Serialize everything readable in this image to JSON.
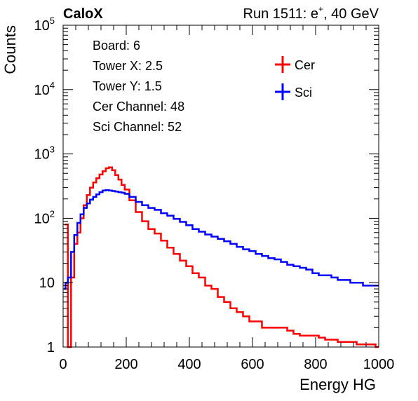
{
  "header": {
    "left_title": "CaloX",
    "right_title_prefix": "Run 1511: e",
    "right_title_sup": "+",
    "right_title_suffix": ", 40 GeV"
  },
  "info_box": {
    "lines": [
      "Board: 6",
      "Tower X: 2.5",
      "Tower Y: 1.5",
      "Cer Channel: 48",
      "Sci Channel: 52"
    ]
  },
  "colors": {
    "cer": "#ff0000",
    "sci": "#0000ff",
    "axis": "#000000"
  },
  "chart_data": {
    "type": "line",
    "title": "",
    "xlabel": "Energy HG",
    "ylabel": "Counts",
    "xlim": [
      0,
      1000
    ],
    "ylim": [
      1,
      100000
    ],
    "log_y": true,
    "grid": false,
    "legend_position": "top-right",
    "x_ticks": [
      {
        "value": 0,
        "label": "0"
      },
      {
        "value": 200,
        "label": "200"
      },
      {
        "value": 400,
        "label": "400"
      },
      {
        "value": 600,
        "label": "600"
      },
      {
        "value": 800,
        "label": "800"
      },
      {
        "value": 1000,
        "label": "1000"
      }
    ],
    "y_ticks": [
      {
        "value": 1,
        "base": "1",
        "exp": ""
      },
      {
        "value": 10,
        "base": "10",
        "exp": ""
      },
      {
        "value": 100,
        "base": "10",
        "exp": "2"
      },
      {
        "value": 1000,
        "base": "10",
        "exp": "3"
      },
      {
        "value": 10000,
        "base": "10",
        "exp": "4"
      },
      {
        "value": 100000,
        "base": "10",
        "exp": "5"
      }
    ],
    "series": [
      {
        "name": "Cer",
        "color": "#ff0000",
        "x": [
          10,
          20,
          30,
          40,
          50,
          60,
          70,
          80,
          90,
          100,
          110,
          120,
          130,
          140,
          150,
          160,
          170,
          180,
          190,
          200,
          220,
          240,
          260,
          280,
          300,
          320,
          340,
          360,
          380,
          400,
          420,
          440,
          460,
          480,
          500,
          520,
          540,
          560,
          580,
          600,
          620,
          640,
          660,
          680,
          700,
          720,
          740,
          760,
          780,
          800,
          820,
          840,
          860,
          880,
          900,
          920,
          940,
          960,
          980,
          1000
        ],
        "y": [
          80,
          1,
          12,
          40,
          60,
          100,
          160,
          230,
          300,
          360,
          420,
          480,
          540,
          600,
          620,
          560,
          470,
          400,
          330,
          280,
          190,
          125,
          90,
          68,
          58,
          45,
          35,
          28,
          22,
          18,
          14,
          12,
          9,
          8,
          6,
          5,
          4,
          3.5,
          3,
          2.5,
          2.5,
          2,
          2,
          2,
          2,
          1.8,
          1.6,
          1.5,
          1.5,
          1.5,
          1.4,
          1.3,
          1.3,
          1.2,
          1.2,
          1.2,
          1.1,
          1.1,
          1.1,
          1
        ]
      },
      {
        "name": "Sci",
        "color": "#0000ff",
        "x": [
          5,
          10,
          20,
          30,
          40,
          50,
          60,
          70,
          80,
          90,
          100,
          110,
          120,
          130,
          140,
          150,
          160,
          170,
          180,
          190,
          200,
          220,
          240,
          260,
          280,
          300,
          320,
          340,
          360,
          380,
          400,
          420,
          440,
          460,
          480,
          500,
          520,
          540,
          560,
          580,
          600,
          620,
          640,
          660,
          680,
          700,
          720,
          740,
          760,
          780,
          800,
          820,
          840,
          860,
          880,
          900,
          920,
          940,
          960,
          980,
          1000
        ],
        "y": [
          8,
          10,
          12,
          30,
          55,
          85,
          115,
          145,
          170,
          195,
          215,
          235,
          255,
          270,
          275,
          270,
          265,
          260,
          255,
          250,
          240,
          215,
          180,
          160,
          145,
          135,
          120,
          110,
          98,
          88,
          78,
          68,
          62,
          56,
          52,
          48,
          44,
          40,
          36,
          33,
          31,
          28,
          26,
          24,
          23,
          21,
          19,
          18,
          17,
          16,
          14,
          13,
          13,
          12,
          11,
          11,
          10,
          10,
          9,
          9,
          9
        ]
      }
    ]
  }
}
